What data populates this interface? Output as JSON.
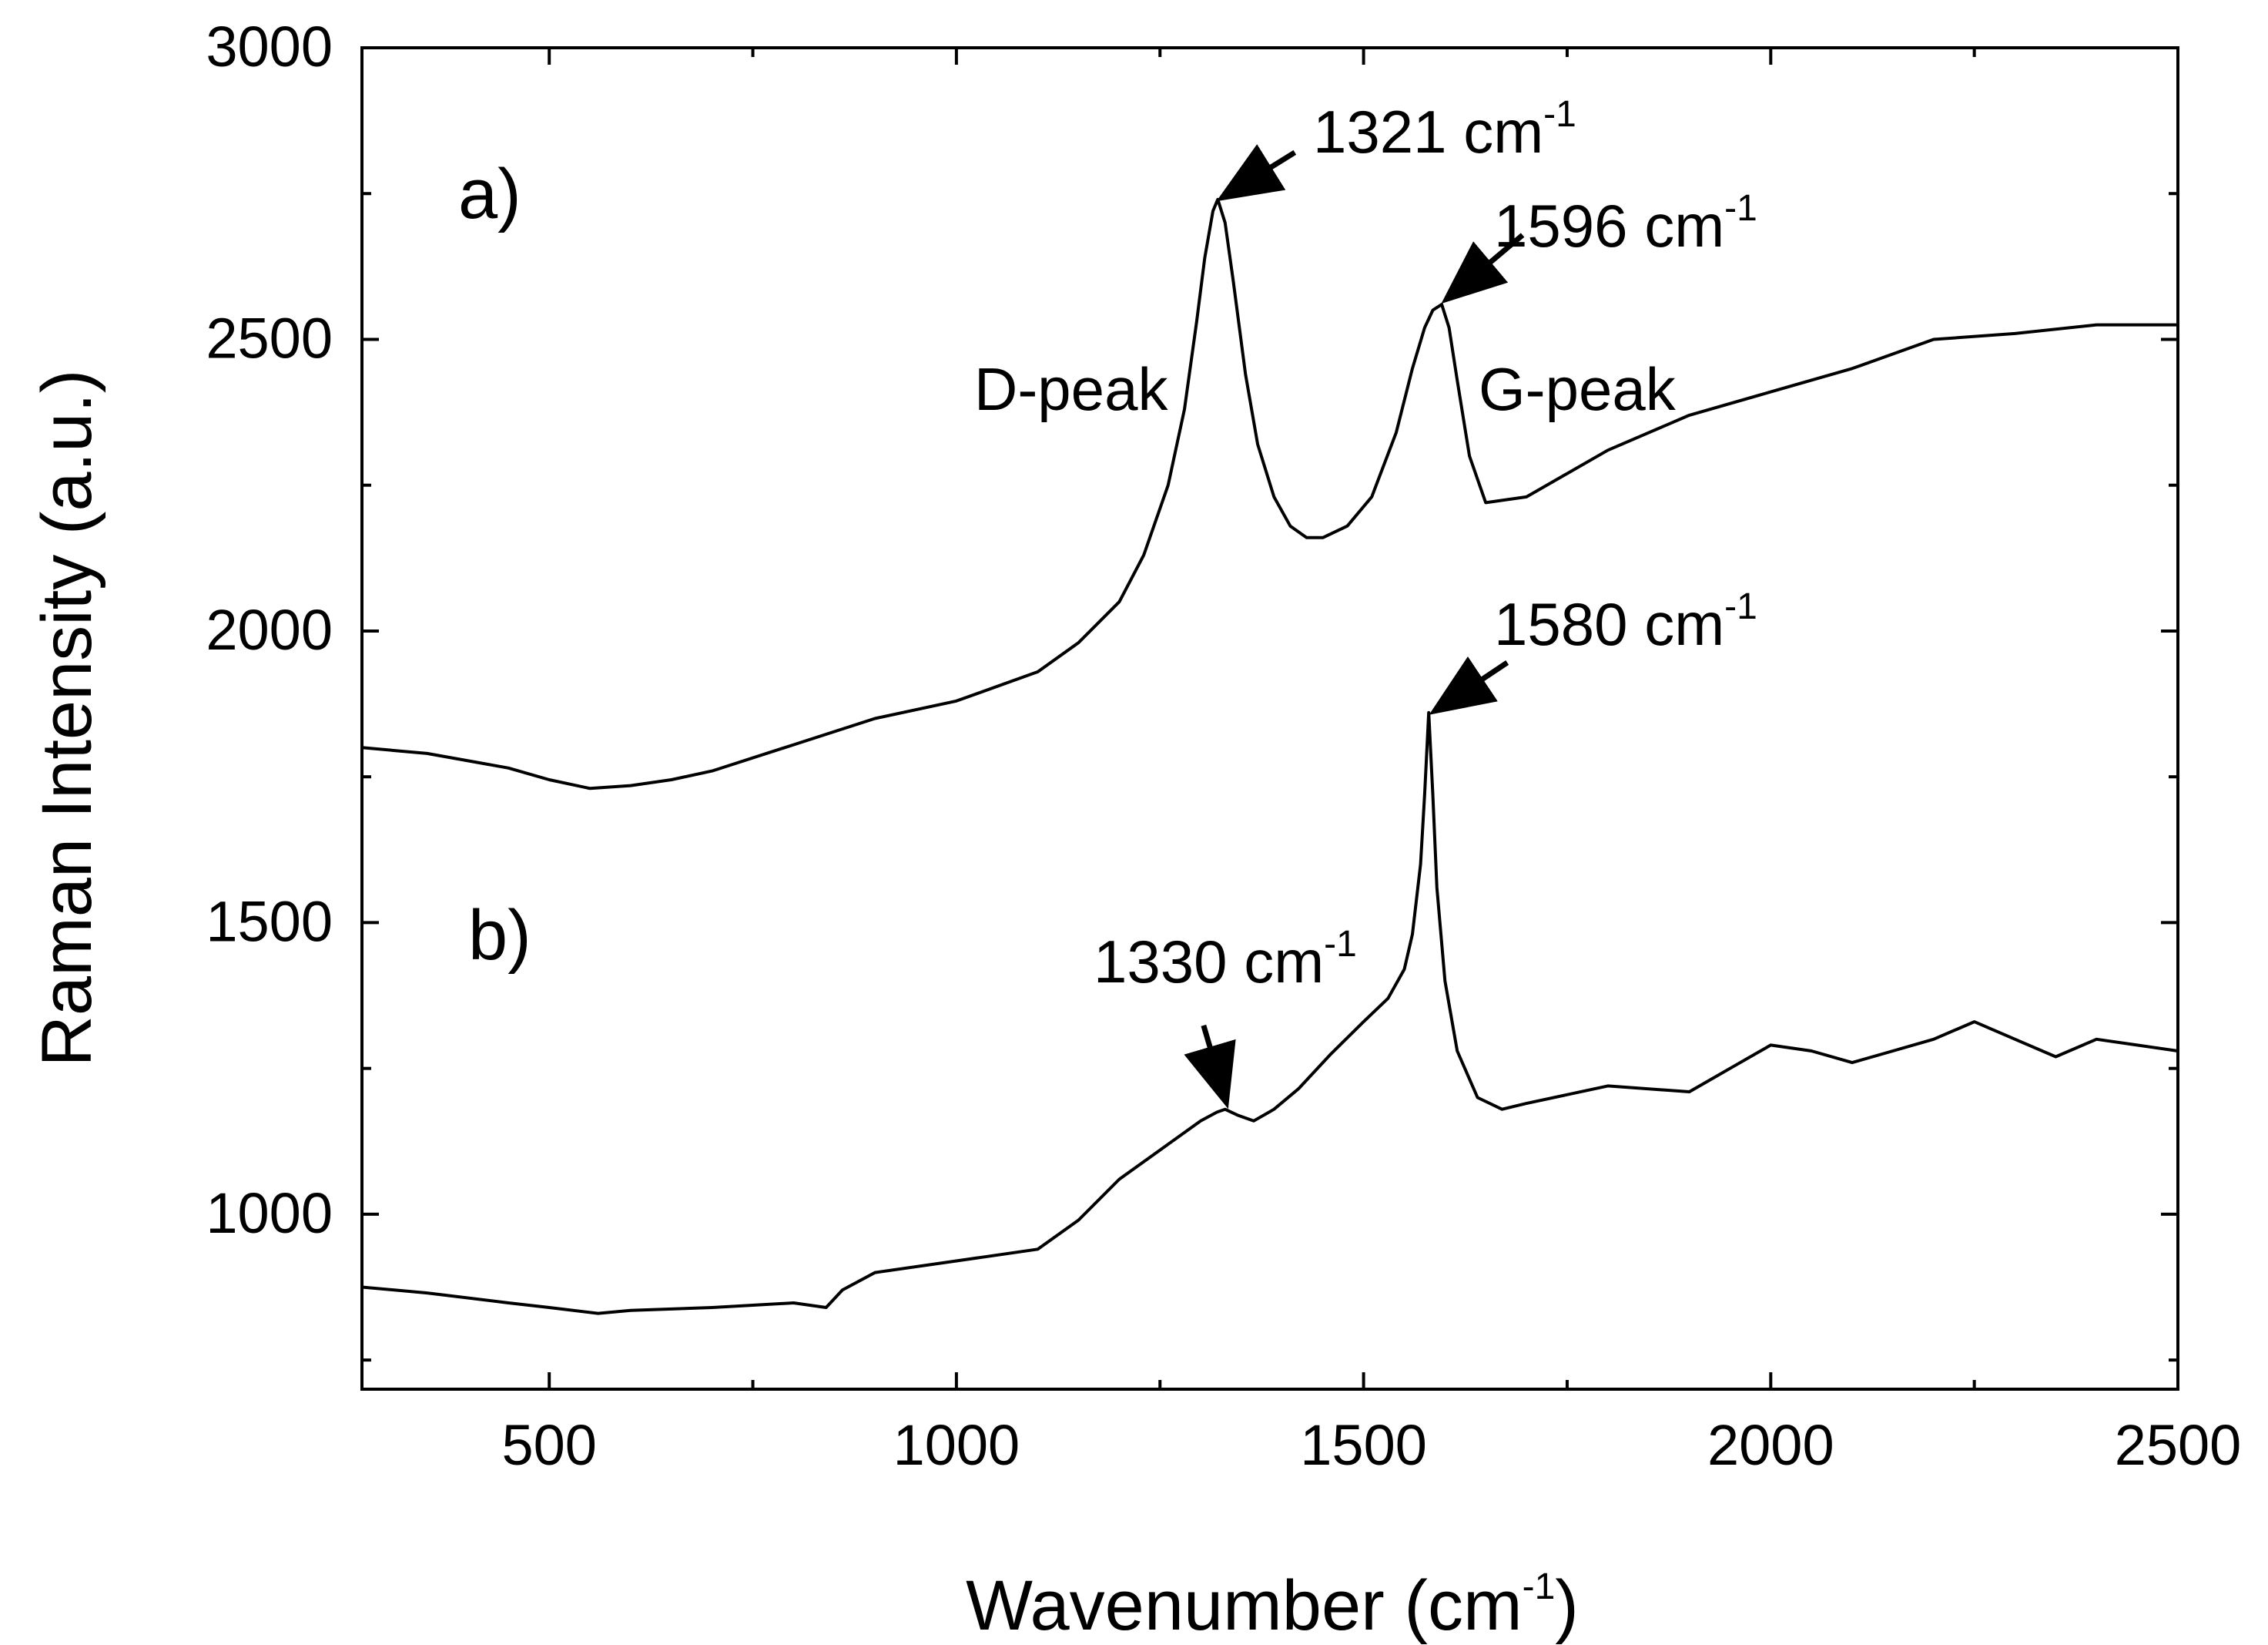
{
  "chart_data": {
    "type": "line",
    "title": "",
    "xlabel": {
      "main": "Wavenumber (cm",
      "sup": "-1",
      "close": ")"
    },
    "ylabel": "Raman Intensity (a.u.)",
    "xlim": [
      270,
      2500
    ],
    "ylim": [
      700,
      3000
    ],
    "xticks": [
      500,
      1000,
      1500,
      2000,
      2500
    ],
    "yticks": [
      1000,
      1500,
      2000,
      2500,
      3000
    ],
    "grid": false,
    "series": [
      {
        "name": "a)",
        "color": "#000000",
        "x": [
          270,
          350,
          450,
          500,
          550,
          600,
          650,
          700,
          800,
          900,
          1000,
          1100,
          1150,
          1200,
          1230,
          1260,
          1280,
          1295,
          1305,
          1315,
          1321,
          1330,
          1340,
          1355,
          1370,
          1390,
          1410,
          1430,
          1450,
          1480,
          1510,
          1540,
          1560,
          1575,
          1585,
          1596,
          1605,
          1615,
          1630,
          1650,
          1700,
          1800,
          1900,
          2000,
          2100,
          2200,
          2300,
          2400,
          2500
        ],
        "y": [
          1800,
          1790,
          1765,
          1745,
          1730,
          1735,
          1745,
          1760,
          1805,
          1850,
          1880,
          1930,
          1980,
          2050,
          2130,
          2250,
          2380,
          2530,
          2640,
          2720,
          2740,
          2700,
          2600,
          2440,
          2320,
          2230,
          2180,
          2160,
          2160,
          2180,
          2230,
          2340,
          2450,
          2520,
          2550,
          2560,
          2520,
          2430,
          2300,
          2220,
          2230,
          2310,
          2370,
          2410,
          2450,
          2500,
          2510,
          2525,
          2525
        ]
      },
      {
        "name": "b)",
        "color": "#000000",
        "x": [
          270,
          350,
          450,
          500,
          560,
          600,
          700,
          800,
          840,
          860,
          900,
          1000,
          1100,
          1150,
          1200,
          1250,
          1300,
          1320,
          1330,
          1345,
          1365,
          1390,
          1420,
          1460,
          1500,
          1530,
          1550,
          1560,
          1570,
          1575,
          1580,
          1585,
          1590,
          1600,
          1615,
          1640,
          1670,
          1700,
          1800,
          1900,
          1950,
          2000,
          2050,
          2100,
          2150,
          2200,
          2250,
          2300,
          2350,
          2400,
          2450,
          2500
        ],
        "y": [
          875,
          865,
          848,
          840,
          830,
          835,
          840,
          848,
          840,
          870,
          900,
          920,
          940,
          990,
          1060,
          1110,
          1160,
          1175,
          1180,
          1170,
          1160,
          1180,
          1215,
          1275,
          1330,
          1370,
          1420,
          1480,
          1600,
          1720,
          1860,
          1720,
          1560,
          1400,
          1280,
          1200,
          1180,
          1190,
          1220,
          1210,
          1250,
          1290,
          1280,
          1260,
          1280,
          1300,
          1330,
          1300,
          1270,
          1300,
          1290,
          1280
        ]
      }
    ],
    "annotations": {
      "a_1321": {
        "text": "1321 cm",
        "sup": "-1",
        "x": 1321,
        "y": 2740
      },
      "a_1596": {
        "text": "1596 cm",
        "sup": "-1",
        "x": 1596,
        "y": 2560
      },
      "b_1580": {
        "text": "1580 cm",
        "sup": "-1",
        "x": 1580,
        "y": 1860
      },
      "b_1330": {
        "text": "1330 cm",
        "sup": "-1",
        "x": 1330,
        "y": 1185
      },
      "d_peak": {
        "text": "D-peak"
      },
      "g_peak": {
        "text": "G-peak"
      },
      "panel_a": {
        "text": "a)"
      },
      "panel_b": {
        "text": "b)"
      }
    }
  }
}
